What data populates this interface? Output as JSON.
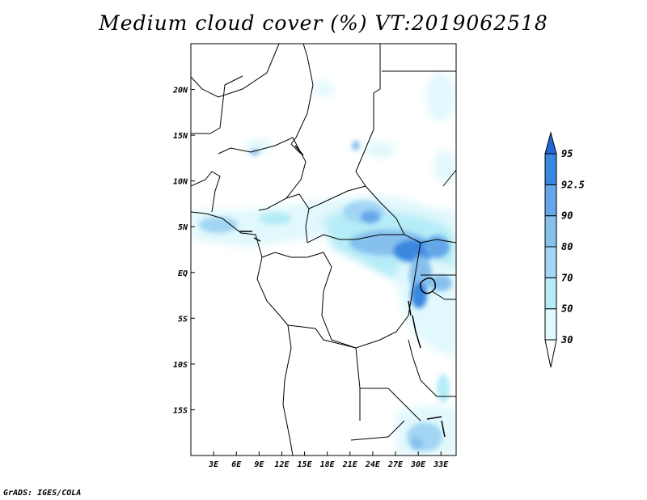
{
  "title": "Medium cloud cover (%) VT:2019062518",
  "credit": "GrADS: IGES/COLA",
  "map": {
    "lon_range": [
      0,
      35
    ],
    "lat_range": [
      -20,
      25
    ],
    "x_ticks": [
      {
        "lon": 3,
        "label": "3E"
      },
      {
        "lon": 6,
        "label": "6E"
      },
      {
        "lon": 9,
        "label": "9E"
      },
      {
        "lon": 12,
        "label": "12E"
      },
      {
        "lon": 15,
        "label": "15E"
      },
      {
        "lon": 18,
        "label": "18E"
      },
      {
        "lon": 21,
        "label": "21E"
      },
      {
        "lon": 24,
        "label": "24E"
      },
      {
        "lon": 27,
        "label": "27E"
      },
      {
        "lon": 30,
        "label": "30E"
      },
      {
        "lon": 33,
        "label": "33E"
      }
    ],
    "y_ticks": [
      {
        "lat": 20,
        "label": "20N"
      },
      {
        "lat": 15,
        "label": "15N"
      },
      {
        "lat": 10,
        "label": "10N"
      },
      {
        "lat": 5,
        "label": "5N"
      },
      {
        "lat": 0,
        "label": "EQ"
      },
      {
        "lat": -5,
        "label": "5S"
      },
      {
        "lat": -10,
        "label": "10S"
      },
      {
        "lat": -15,
        "label": "15S"
      }
    ]
  },
  "legend": {
    "levels": [
      "30",
      "50",
      "70",
      "80",
      "90",
      "92.5",
      "95"
    ],
    "colors": [
      "#ffffff",
      "#e1f8fc",
      "#b5ecf7",
      "#a2d6f4",
      "#86c1ee",
      "#64a7ea",
      "#3a87e0",
      "#1f68d6"
    ]
  }
}
